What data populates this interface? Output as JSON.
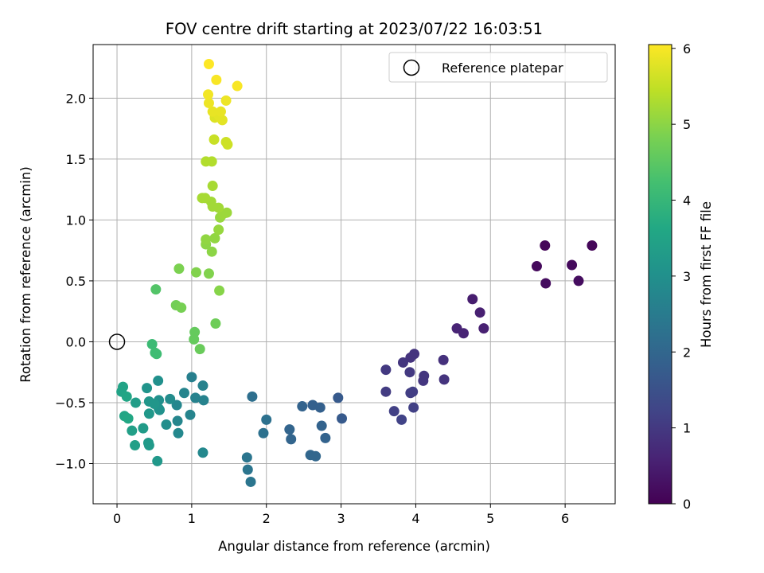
{
  "chart_data": {
    "type": "scatter",
    "title": "FOV centre drift starting at 2023/07/22 16:03:51",
    "xlabel": "Angular distance from reference (arcmin)",
    "ylabel": "Rotation from reference (arcmin)",
    "xlim": [
      -0.32,
      6.67
    ],
    "ylim": [
      -1.33,
      2.44
    ],
    "xticks": [
      0,
      1,
      2,
      3,
      4,
      5,
      6
    ],
    "xtick_labels": [
      "0",
      "1",
      "2",
      "3",
      "4",
      "5",
      "6"
    ],
    "yticks": [
      -1.0,
      -0.5,
      0.0,
      0.5,
      1.0,
      1.5,
      2.0
    ],
    "ytick_labels": [
      "−1.0",
      "−0.5",
      "0.0",
      "0.5",
      "1.0",
      "1.5",
      "2.0"
    ],
    "grid": true,
    "legend": {
      "position": "top-right",
      "entries": [
        "Reference platepar"
      ]
    },
    "reference_point": {
      "x": 0,
      "y": 0,
      "label": "Reference platepar",
      "marker": "open-circle"
    },
    "colorbar": {
      "label": "Hours from first FF file",
      "colormap": "viridis",
      "range": [
        0,
        6.05
      ],
      "ticks": [
        0,
        1,
        2,
        3,
        4,
        5,
        6
      ],
      "tick_labels": [
        "0",
        "1",
        "2",
        "3",
        "4",
        "5",
        "6"
      ]
    },
    "points": [
      {
        "x": 5.73,
        "y": 0.79,
        "t": 0.1
      },
      {
        "x": 6.36,
        "y": 0.79,
        "t": 0.1
      },
      {
        "x": 5.62,
        "y": 0.62,
        "t": 0.15
      },
      {
        "x": 6.09,
        "y": 0.63,
        "t": 0.15
      },
      {
        "x": 5.74,
        "y": 0.48,
        "t": 0.2
      },
      {
        "x": 6.18,
        "y": 0.5,
        "t": 0.2
      },
      {
        "x": 4.76,
        "y": 0.35,
        "t": 0.5
      },
      {
        "x": 4.86,
        "y": 0.24,
        "t": 0.55
      },
      {
        "x": 4.55,
        "y": 0.11,
        "t": 0.6
      },
      {
        "x": 4.64,
        "y": 0.07,
        "t": 0.6
      },
      {
        "x": 4.91,
        "y": 0.11,
        "t": 0.55
      },
      {
        "x": 4.37,
        "y": -0.15,
        "t": 0.85
      },
      {
        "x": 3.98,
        "y": -0.1,
        "t": 0.9
      },
      {
        "x": 3.93,
        "y": -0.13,
        "t": 0.9
      },
      {
        "x": 3.83,
        "y": -0.17,
        "t": 0.95
      },
      {
        "x": 3.6,
        "y": -0.23,
        "t": 1.0
      },
      {
        "x": 3.92,
        "y": -0.25,
        "t": 1.0
      },
      {
        "x": 4.11,
        "y": -0.28,
        "t": 0.95
      },
      {
        "x": 4.1,
        "y": -0.32,
        "t": 0.95
      },
      {
        "x": 4.38,
        "y": -0.31,
        "t": 0.9
      },
      {
        "x": 3.6,
        "y": -0.41,
        "t": 1.05
      },
      {
        "x": 3.93,
        "y": -0.42,
        "t": 1.1
      },
      {
        "x": 3.96,
        "y": -0.41,
        "t": 1.1
      },
      {
        "x": 3.71,
        "y": -0.57,
        "t": 1.15
      },
      {
        "x": 3.97,
        "y": -0.54,
        "t": 1.15
      },
      {
        "x": 3.81,
        "y": -0.64,
        "t": 1.2
      },
      {
        "x": 2.96,
        "y": -0.46,
        "t": 1.7
      },
      {
        "x": 3.01,
        "y": -0.63,
        "t": 1.7
      },
      {
        "x": 2.62,
        "y": -0.52,
        "t": 1.85
      },
      {
        "x": 2.72,
        "y": -0.54,
        "t": 1.85
      },
      {
        "x": 2.48,
        "y": -0.53,
        "t": 1.9
      },
      {
        "x": 2.74,
        "y": -0.69,
        "t": 1.9
      },
      {
        "x": 2.31,
        "y": -0.72,
        "t": 1.95
      },
      {
        "x": 2.33,
        "y": -0.8,
        "t": 1.95
      },
      {
        "x": 2.79,
        "y": -0.79,
        "t": 1.9
      },
      {
        "x": 2.59,
        "y": -0.93,
        "t": 2.0
      },
      {
        "x": 2.66,
        "y": -0.94,
        "t": 2.0
      },
      {
        "x": 1.81,
        "y": -0.45,
        "t": 2.2
      },
      {
        "x": 2.0,
        "y": -0.64,
        "t": 2.25
      },
      {
        "x": 1.96,
        "y": -0.75,
        "t": 2.25
      },
      {
        "x": 1.74,
        "y": -0.95,
        "t": 2.35
      },
      {
        "x": 1.75,
        "y": -1.05,
        "t": 2.35
      },
      {
        "x": 1.79,
        "y": -1.15,
        "t": 2.35
      },
      {
        "x": 1.0,
        "y": -0.29,
        "t": 2.6
      },
      {
        "x": 1.15,
        "y": -0.36,
        "t": 2.65
      },
      {
        "x": 1.05,
        "y": -0.46,
        "t": 2.65
      },
      {
        "x": 1.16,
        "y": -0.48,
        "t": 2.65
      },
      {
        "x": 0.9,
        "y": -0.42,
        "t": 2.7
      },
      {
        "x": 0.98,
        "y": -0.6,
        "t": 2.7
      },
      {
        "x": 0.8,
        "y": -0.52,
        "t": 2.75
      },
      {
        "x": 0.81,
        "y": -0.65,
        "t": 2.75
      },
      {
        "x": 0.82,
        "y": -0.75,
        "t": 2.8
      },
      {
        "x": 1.15,
        "y": -0.91,
        "t": 2.8
      },
      {
        "x": 0.71,
        "y": -0.47,
        "t": 2.9
      },
      {
        "x": 0.66,
        "y": -0.68,
        "t": 2.95
      },
      {
        "x": 0.56,
        "y": -0.48,
        "t": 3.0
      },
      {
        "x": 0.55,
        "y": -0.32,
        "t": 3.0
      },
      {
        "x": 0.56,
        "y": -0.55,
        "t": 3.05
      },
      {
        "x": 0.57,
        "y": -0.56,
        "t": 3.05
      },
      {
        "x": 0.4,
        "y": -0.38,
        "t": 3.1
      },
      {
        "x": 0.43,
        "y": -0.49,
        "t": 3.15
      },
      {
        "x": 0.5,
        "y": -0.51,
        "t": 3.15
      },
      {
        "x": 0.43,
        "y": -0.59,
        "t": 3.2
      },
      {
        "x": 0.54,
        "y": -0.98,
        "t": 3.2
      },
      {
        "x": 0.42,
        "y": -0.83,
        "t": 3.25
      },
      {
        "x": 0.43,
        "y": -0.85,
        "t": 3.25
      },
      {
        "x": 0.35,
        "y": -0.71,
        "t": 3.3
      },
      {
        "x": 0.25,
        "y": -0.5,
        "t": 3.35
      },
      {
        "x": 0.2,
        "y": -0.73,
        "t": 3.4
      },
      {
        "x": 0.24,
        "y": -0.85,
        "t": 3.4
      },
      {
        "x": 0.08,
        "y": -0.37,
        "t": 3.5
      },
      {
        "x": 0.06,
        "y": -0.41,
        "t": 3.5
      },
      {
        "x": 0.13,
        "y": -0.45,
        "t": 3.55
      },
      {
        "x": 0.1,
        "y": -0.61,
        "t": 3.55
      },
      {
        "x": 0.15,
        "y": -0.63,
        "t": 3.6
      },
      {
        "x": 0.47,
        "y": -0.02,
        "t": 4.1
      },
      {
        "x": 0.51,
        "y": -0.09,
        "t": 4.15
      },
      {
        "x": 0.53,
        "y": -0.1,
        "t": 4.15
      },
      {
        "x": 0.52,
        "y": 0.43,
        "t": 4.4
      },
      {
        "x": 1.04,
        "y": 0.08,
        "t": 4.6
      },
      {
        "x": 1.03,
        "y": 0.02,
        "t": 4.6
      },
      {
        "x": 1.11,
        "y": -0.06,
        "t": 4.65
      },
      {
        "x": 1.32,
        "y": 0.15,
        "t": 4.7
      },
      {
        "x": 0.79,
        "y": 0.3,
        "t": 4.75
      },
      {
        "x": 0.86,
        "y": 0.28,
        "t": 4.8
      },
      {
        "x": 0.83,
        "y": 0.6,
        "t": 4.85
      },
      {
        "x": 1.06,
        "y": 0.57,
        "t": 4.9
      },
      {
        "x": 1.23,
        "y": 0.56,
        "t": 4.9
      },
      {
        "x": 1.37,
        "y": 0.42,
        "t": 4.95
      },
      {
        "x": 1.27,
        "y": 0.74,
        "t": 5.0
      },
      {
        "x": 1.19,
        "y": 0.8,
        "t": 5.0
      },
      {
        "x": 1.19,
        "y": 0.84,
        "t": 5.05
      },
      {
        "x": 1.31,
        "y": 0.85,
        "t": 5.05
      },
      {
        "x": 1.36,
        "y": 0.92,
        "t": 5.1
      },
      {
        "x": 1.38,
        "y": 1.02,
        "t": 5.1
      },
      {
        "x": 1.42,
        "y": 1.05,
        "t": 5.15
      },
      {
        "x": 1.47,
        "y": 1.06,
        "t": 5.15
      },
      {
        "x": 1.36,
        "y": 1.1,
        "t": 5.2
      },
      {
        "x": 1.28,
        "y": 1.11,
        "t": 5.2
      },
      {
        "x": 1.26,
        "y": 1.15,
        "t": 5.2
      },
      {
        "x": 1.14,
        "y": 1.18,
        "t": 5.25
      },
      {
        "x": 1.18,
        "y": 1.18,
        "t": 5.25
      },
      {
        "x": 1.28,
        "y": 1.28,
        "t": 5.25
      },
      {
        "x": 1.19,
        "y": 1.48,
        "t": 5.35
      },
      {
        "x": 1.27,
        "y": 1.48,
        "t": 5.35
      },
      {
        "x": 1.3,
        "y": 1.66,
        "t": 5.55
      },
      {
        "x": 1.46,
        "y": 1.64,
        "t": 5.6
      },
      {
        "x": 1.48,
        "y": 1.62,
        "t": 5.6
      },
      {
        "x": 1.31,
        "y": 1.84,
        "t": 5.75
      },
      {
        "x": 1.35,
        "y": 1.87,
        "t": 5.8
      },
      {
        "x": 1.37,
        "y": 1.85,
        "t": 5.8
      },
      {
        "x": 1.41,
        "y": 1.82,
        "t": 5.8
      },
      {
        "x": 1.28,
        "y": 1.89,
        "t": 5.85
      },
      {
        "x": 1.39,
        "y": 1.89,
        "t": 5.85
      },
      {
        "x": 1.23,
        "y": 1.96,
        "t": 5.9
      },
      {
        "x": 1.46,
        "y": 1.98,
        "t": 5.9
      },
      {
        "x": 1.22,
        "y": 2.03,
        "t": 5.95
      },
      {
        "x": 1.33,
        "y": 2.15,
        "t": 6.0
      },
      {
        "x": 1.61,
        "y": 2.1,
        "t": 6.0
      },
      {
        "x": 1.23,
        "y": 2.28,
        "t": 6.05
      }
    ]
  }
}
